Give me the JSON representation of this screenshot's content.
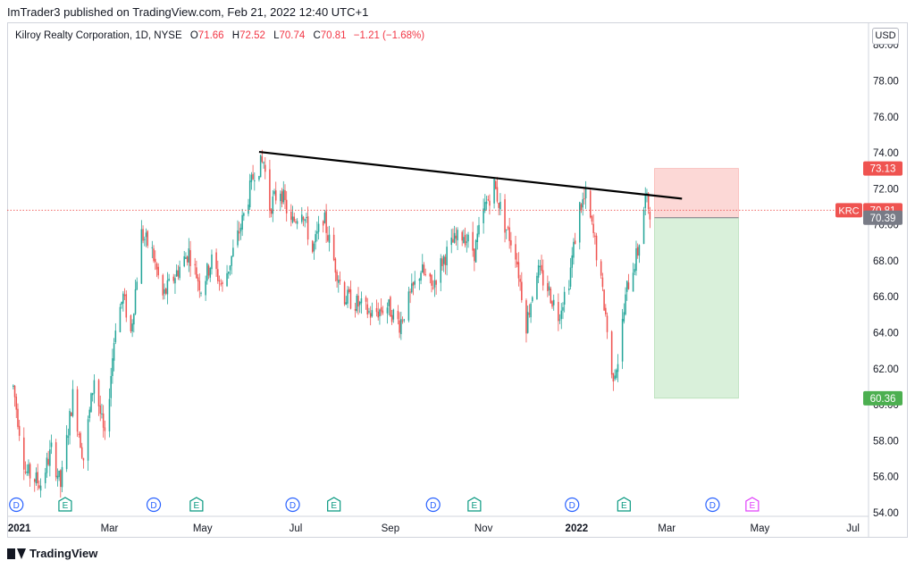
{
  "header": {
    "published_text": "ImTrader3 published on TradingView.com, Feb 21, 2022 12:40 UTC+1"
  },
  "legend": {
    "symbol": "Kilroy Realty Corporation, 1D, NYSE",
    "o_label": "O",
    "o_value": "71.66",
    "h_label": "H",
    "h_value": "72.52",
    "l_label": "L",
    "l_value": "70.74",
    "c_label": "C",
    "c_value": "70.81",
    "change": "−1.21 (−1.68%)"
  },
  "currency_button": "USD",
  "footer": {
    "brand": "TradingView"
  },
  "colors": {
    "up": "#26a69a",
    "down": "#ef5350",
    "trendline": "#000000",
    "stop_zone": "#fcd8d6",
    "target_zone": "#d9f0da",
    "last_price": "#ef5350",
    "entry": "#787b86",
    "target": "#4caf50"
  },
  "chart_data": {
    "type": "candlestick",
    "symbol": "KRC",
    "interval": "1D",
    "y_ticks": [
      "80.00",
      "78.00",
      "76.00",
      "74.00",
      "72.00",
      "70.00",
      "68.00",
      "66.00",
      "64.00",
      "62.00",
      "60.00",
      "58.00",
      "56.00",
      "54.00"
    ],
    "ylim": [
      53.8,
      81.2
    ],
    "x_ticks": [
      {
        "label": "2021",
        "date": "2021-01-01",
        "bold": true
      },
      {
        "label": "Mar",
        "date": "2021-03-01",
        "bold": false
      },
      {
        "label": "May",
        "date": "2021-05-01",
        "bold": false
      },
      {
        "label": "Jul",
        "date": "2021-07-01",
        "bold": false
      },
      {
        "label": "Sep",
        "date": "2021-09-01",
        "bold": false
      },
      {
        "label": "Nov",
        "date": "2021-11-01",
        "bold": false
      },
      {
        "label": "2022",
        "date": "2022-01-01",
        "bold": true
      },
      {
        "label": "Mar",
        "date": "2022-03-01",
        "bold": false
      },
      {
        "label": "May",
        "date": "2022-05-01",
        "bold": false
      },
      {
        "label": "Jul",
        "date": "2022-07-01",
        "bold": false
      }
    ],
    "x_range": [
      "2020-12-24",
      "2022-07-10"
    ],
    "price_path": [
      [
        "2020-12-28",
        61.0
      ],
      [
        "2021-01-05",
        56.3
      ],
      [
        "2021-01-15",
        55.6
      ],
      [
        "2021-01-22",
        57.5
      ],
      [
        "2021-01-28",
        55.5
      ],
      [
        "2021-02-05",
        60.5
      ],
      [
        "2021-02-12",
        57.0
      ],
      [
        "2021-02-19",
        61.5
      ],
      [
        "2021-02-26",
        58.0
      ],
      [
        "2021-03-05",
        64.5
      ],
      [
        "2021-03-10",
        66.0
      ],
      [
        "2021-03-15",
        64.0
      ],
      [
        "2021-03-22",
        69.5
      ],
      [
        "2021-03-29",
        68.5
      ],
      [
        "2021-04-05",
        66.0
      ],
      [
        "2021-04-15",
        67.5
      ],
      [
        "2021-04-22",
        68.5
      ],
      [
        "2021-04-30",
        66.5
      ],
      [
        "2021-05-07",
        68.0
      ],
      [
        "2021-05-14",
        66.5
      ],
      [
        "2021-05-21",
        68.5
      ],
      [
        "2021-05-28",
        70.5
      ],
      [
        "2021-06-04",
        73.0
      ],
      [
        "2021-06-10",
        73.5
      ],
      [
        "2021-06-14",
        71.0
      ],
      [
        "2021-06-21",
        72.0
      ],
      [
        "2021-06-28",
        70.0
      ],
      [
        "2021-07-05",
        71.0
      ],
      [
        "2021-07-12",
        68.5
      ],
      [
        "2021-07-19",
        70.5
      ],
      [
        "2021-07-26",
        68.0
      ],
      [
        "2021-08-02",
        66.0
      ],
      [
        "2021-08-12",
        65.5
      ],
      [
        "2021-08-20",
        65.0
      ],
      [
        "2021-08-30",
        65.5
      ],
      [
        "2021-09-07",
        64.5
      ],
      [
        "2021-09-14",
        66.0
      ],
      [
        "2021-09-21",
        67.5
      ],
      [
        "2021-09-28",
        66.5
      ],
      [
        "2021-10-05",
        68.0
      ],
      [
        "2021-10-12",
        69.0
      ],
      [
        "2021-10-19",
        69.5
      ],
      [
        "2021-10-26",
        68.5
      ],
      [
        "2021-11-02",
        71.0
      ],
      [
        "2021-11-08",
        72.2
      ],
      [
        "2021-11-15",
        70.0
      ],
      [
        "2021-11-22",
        68.5
      ],
      [
        "2021-11-29",
        64.5
      ],
      [
        "2021-12-06",
        67.5
      ],
      [
        "2021-12-13",
        66.5
      ],
      [
        "2021-12-20",
        65.0
      ],
      [
        "2021-12-27",
        67.0
      ],
      [
        "2022-01-03",
        71.0
      ],
      [
        "2022-01-07",
        71.5
      ],
      [
        "2022-01-13",
        69.0
      ],
      [
        "2022-01-20",
        65.0
      ],
      [
        "2022-01-24",
        61.5
      ],
      [
        "2022-01-28",
        62.5
      ],
      [
        "2022-02-03",
        66.5
      ],
      [
        "2022-02-10",
        68.5
      ],
      [
        "2022-02-15",
        71.5
      ],
      [
        "2022-02-18",
        70.81
      ]
    ],
    "trendline": {
      "from": [
        "2021-06-07",
        74.05
      ],
      "to": [
        "2022-03-11",
        71.45
      ]
    },
    "position": {
      "start": "2022-02-21",
      "end": "2022-04-17",
      "stop": 73.13,
      "entry": 70.39,
      "target": 60.36
    },
    "last_price": {
      "label": "KRC",
      "value": "70.81"
    },
    "entry_label": "70.39",
    "stop_label": "73.13",
    "target_label": "60.36",
    "events": [
      {
        "type": "D",
        "date": "2020-12-30"
      },
      {
        "type": "E",
        "date": "2021-01-31"
      },
      {
        "type": "D",
        "date": "2021-03-30"
      },
      {
        "type": "E",
        "date": "2021-04-27"
      },
      {
        "type": "D",
        "date": "2021-06-29"
      },
      {
        "type": "E",
        "date": "2021-07-26"
      },
      {
        "type": "D",
        "date": "2021-09-29"
      },
      {
        "type": "E",
        "date": "2021-10-26"
      },
      {
        "type": "D",
        "date": "2021-12-29"
      },
      {
        "type": "E",
        "date": "2022-02-01"
      },
      {
        "type": "D",
        "date": "2022-03-31"
      },
      {
        "type": "E",
        "date": "2022-04-26",
        "future": true
      }
    ]
  }
}
